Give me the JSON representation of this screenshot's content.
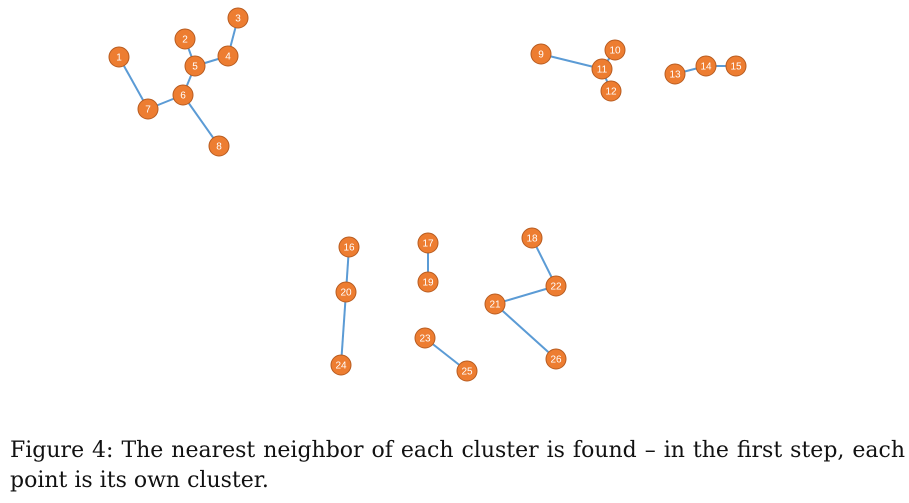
{
  "figure": {
    "node_color": "#ED7D31",
    "node_stroke": "#B85C20",
    "edge_color": "#5B9BD5",
    "nodes": [
      {
        "id": "1"
      },
      {
        "id": "2"
      },
      {
        "id": "3"
      },
      {
        "id": "4"
      },
      {
        "id": "5"
      },
      {
        "id": "6"
      },
      {
        "id": "7"
      },
      {
        "id": "8"
      },
      {
        "id": "9"
      },
      {
        "id": "10"
      },
      {
        "id": "11"
      },
      {
        "id": "12"
      },
      {
        "id": "13"
      },
      {
        "id": "14"
      },
      {
        "id": "15"
      },
      {
        "id": "16"
      },
      {
        "id": "17"
      },
      {
        "id": "18"
      },
      {
        "id": "19"
      },
      {
        "id": "20"
      },
      {
        "id": "21"
      },
      {
        "id": "22"
      },
      {
        "id": "23"
      },
      {
        "id": "24"
      },
      {
        "id": "25"
      },
      {
        "id": "26"
      }
    ],
    "edges": [
      [
        "1",
        "7"
      ],
      [
        "7",
        "6"
      ],
      [
        "6",
        "8"
      ],
      [
        "6",
        "5"
      ],
      [
        "5",
        "2"
      ],
      [
        "5",
        "4"
      ],
      [
        "4",
        "3"
      ],
      [
        "9",
        "11"
      ],
      [
        "11",
        "10"
      ],
      [
        "11",
        "12"
      ],
      [
        "13",
        "14"
      ],
      [
        "14",
        "15"
      ],
      [
        "16",
        "20"
      ],
      [
        "20",
        "24"
      ],
      [
        "17",
        "19"
      ],
      [
        "18",
        "22"
      ],
      [
        "22",
        "21"
      ],
      [
        "21",
        "26"
      ],
      [
        "23",
        "25"
      ]
    ]
  },
  "caption": "Figure 4: The nearest neighbor of each cluster is found – in the first step, each point is its own cluster."
}
